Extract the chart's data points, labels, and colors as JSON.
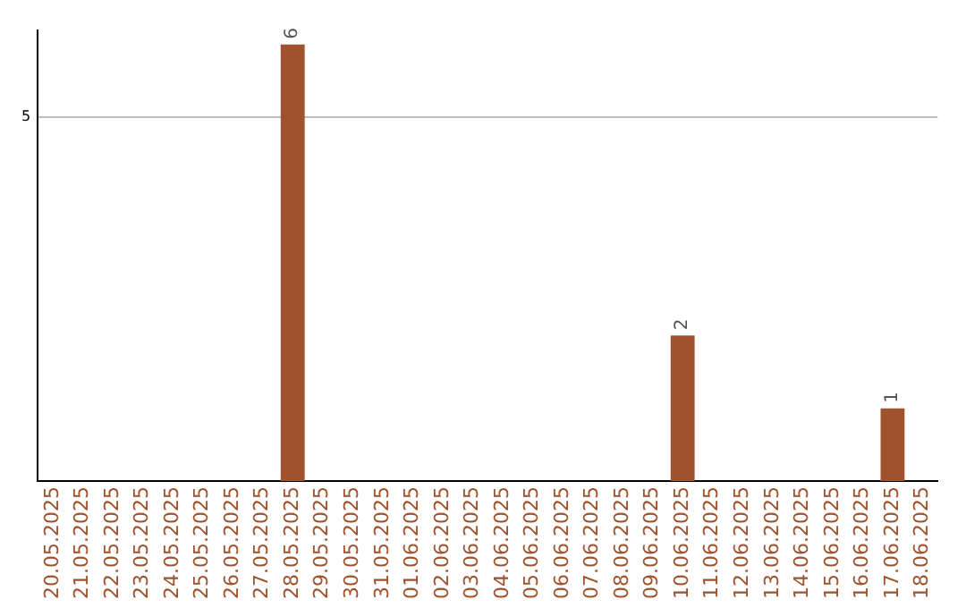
{
  "chart_data": {
    "type": "bar",
    "categories": [
      "20.05.2025",
      "21.05.2025",
      "22.05.2025",
      "23.05.2025",
      "24.05.2025",
      "25.05.2025",
      "26.05.2025",
      "27.05.2025",
      "28.05.2025",
      "29.05.2025",
      "30.05.2025",
      "31.05.2025",
      "01.06.2025",
      "02.06.2025",
      "03.06.2025",
      "04.06.2025",
      "05.06.2025",
      "06.06.2025",
      "07.06.2025",
      "08.06.2025",
      "09.06.2025",
      "10.06.2025",
      "11.06.2025",
      "12.06.2025",
      "13.06.2025",
      "14.06.2025",
      "15.06.2025",
      "16.06.2025",
      "17.06.2025",
      "18.06.2025"
    ],
    "values": [
      0,
      0,
      0,
      0,
      0,
      0,
      0,
      0,
      6,
      0,
      0,
      0,
      0,
      0,
      0,
      0,
      0,
      0,
      0,
      0,
      0,
      2,
      0,
      0,
      0,
      0,
      0,
      0,
      1,
      0
    ],
    "value_labels": [
      null,
      null,
      null,
      null,
      null,
      null,
      null,
      null,
      "6",
      null,
      null,
      null,
      null,
      null,
      null,
      null,
      null,
      null,
      null,
      null,
      null,
      "2",
      null,
      null,
      null,
      null,
      null,
      null,
      "1",
      null
    ],
    "color": "#a0522d",
    "ylim": [
      0,
      6.2
    ],
    "yticks": [
      5
    ],
    "grid": "y",
    "legend": false
  }
}
